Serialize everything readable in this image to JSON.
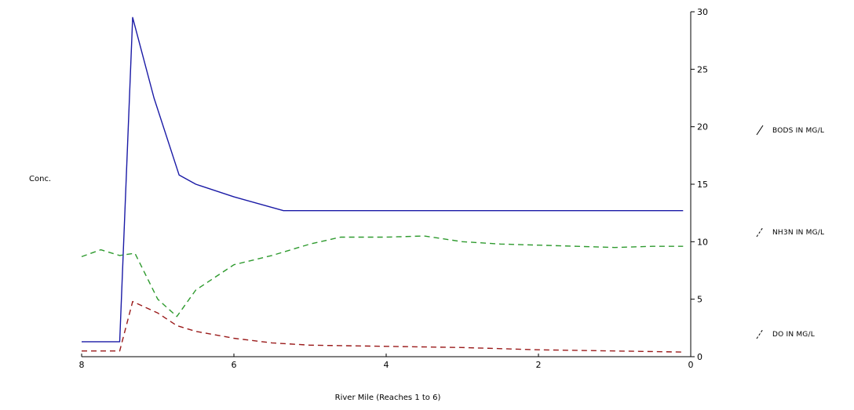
{
  "chart_data": {
    "type": "line",
    "xlabel": "River Mile (Reaches 1 to 6)",
    "ylabel": "Conc.",
    "xlim": [
      8,
      0
    ],
    "ylim": [
      0,
      30
    ],
    "x_ticks": [
      "8",
      "6",
      "4",
      "2",
      "0"
    ],
    "y_ticks": [
      "0",
      "5",
      "10",
      "15",
      "20",
      "25",
      "30"
    ],
    "grid": false,
    "legend_position": "right",
    "series": [
      {
        "name": "BOD5 IN MG/L",
        "legend_label": "BODS IN MG/L",
        "color": "#1a1aa6",
        "dash": "solid",
        "x": [
          8.0,
          7.5,
          7.33,
          7.05,
          6.72,
          6.5,
          6.0,
          5.35,
          4.0,
          2.0,
          0.1
        ],
        "y": [
          1.3,
          1.3,
          29.5,
          22.5,
          15.8,
          15.0,
          13.9,
          12.7,
          12.7,
          12.7,
          12.7
        ]
      },
      {
        "name": "NH3N IN MG/L",
        "legend_label": "NH3N IN MG/L",
        "color": "#2e9a2e",
        "dash": "dashed",
        "x": [
          8.0,
          7.75,
          7.5,
          7.3,
          7.0,
          6.75,
          6.5,
          6.0,
          5.5,
          5.0,
          4.6,
          4.0,
          3.5,
          3.0,
          2.5,
          2.0,
          1.5,
          1.0,
          0.5,
          0.1
        ],
        "y": [
          8.7,
          9.3,
          8.8,
          9.0,
          5.0,
          3.5,
          5.8,
          8.0,
          8.8,
          9.8,
          10.4,
          10.4,
          10.5,
          10.0,
          9.8,
          9.7,
          9.6,
          9.5,
          9.6,
          9.6
        ]
      },
      {
        "name": "DO IN MG/L",
        "legend_label": "DO IN MG/L",
        "color": "#9a1a1a",
        "dash": "dashed",
        "x": [
          8.0,
          7.5,
          7.33,
          7.0,
          6.75,
          6.5,
          6.0,
          5.5,
          5.0,
          4.0,
          3.0,
          2.0,
          1.0,
          0.1
        ],
        "y": [
          0.5,
          0.5,
          4.8,
          3.8,
          2.7,
          2.2,
          1.6,
          1.2,
          1.0,
          0.9,
          0.8,
          0.6,
          0.5,
          0.4
        ]
      }
    ]
  }
}
